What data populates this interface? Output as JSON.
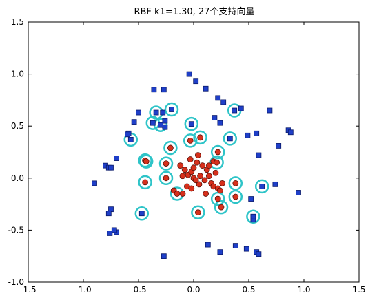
{
  "chart_data": {
    "type": "scatter",
    "title": "RBF k1=1.30, 27个支持向量",
    "xlabel": "",
    "ylabel": "",
    "xlim": [
      -1.5,
      1.5
    ],
    "ylim": [
      -1.0,
      1.5
    ],
    "x_ticks": [
      -1.5,
      -1.0,
      -0.5,
      0.0,
      0.5,
      1.0,
      1.5
    ],
    "x_tick_labels": [
      "-1.5",
      "-1.0",
      "-0.5",
      "0.0",
      "0.5",
      "1.0",
      "1.5"
    ],
    "y_ticks": [
      -1.0,
      -0.5,
      0.0,
      0.5,
      1.0,
      1.5
    ],
    "y_tick_labels": [
      "-1.0",
      "-0.5",
      "0.0",
      "0.5",
      "1.0",
      "1.5"
    ],
    "grid": false,
    "colors": {
      "class_pos": "#1f3fc8",
      "class_neg": "#d6301c",
      "support_ring": "#2ec4c8",
      "axes": "#000000"
    },
    "series": [
      {
        "marker": "square",
        "points": [
          [
            -0.9,
            -0.05
          ],
          [
            -0.8,
            0.12
          ],
          [
            -0.77,
            0.1
          ],
          [
            -0.75,
            0.1
          ],
          [
            -0.7,
            0.19
          ],
          [
            -0.59,
            0.43
          ],
          [
            -0.6,
            0.42
          ],
          [
            -0.5,
            0.63
          ],
          [
            -0.54,
            0.54
          ],
          [
            -0.36,
            0.85
          ],
          [
            -0.27,
            0.85
          ],
          [
            -0.26,
            0.49
          ],
          [
            -0.28,
            0.63
          ],
          [
            -0.26,
            0.55
          ],
          [
            -0.27,
            -0.75
          ],
          [
            -0.75,
            -0.3
          ],
          [
            -0.77,
            -0.34
          ],
          [
            -0.7,
            -0.52
          ],
          [
            -0.76,
            -0.53
          ],
          [
            -0.72,
            -0.5
          ],
          [
            -0.04,
            1.0
          ],
          [
            0.02,
            0.93
          ],
          [
            0.11,
            0.86
          ],
          [
            0.22,
            0.77
          ],
          [
            0.27,
            0.73
          ],
          [
            0.19,
            0.58
          ],
          [
            0.24,
            0.53
          ],
          [
            0.43,
            0.67
          ],
          [
            0.49,
            0.41
          ],
          [
            0.57,
            0.43
          ],
          [
            0.69,
            0.65
          ],
          [
            0.77,
            0.31
          ],
          [
            0.86,
            0.46
          ],
          [
            0.88,
            0.44
          ],
          [
            0.59,
            0.22
          ],
          [
            0.74,
            -0.06
          ],
          [
            0.95,
            -0.14
          ],
          [
            0.52,
            -0.2
          ],
          [
            0.54,
            -0.4
          ],
          [
            0.13,
            -0.64
          ],
          [
            0.24,
            -0.71
          ],
          [
            0.38,
            -0.65
          ],
          [
            0.48,
            -0.68
          ],
          [
            0.57,
            -0.71
          ],
          [
            0.59,
            -0.73
          ]
        ]
      },
      {
        "marker": "circle",
        "points": [
          [
            -0.1,
            0.02
          ],
          [
            -0.08,
            0.08
          ],
          [
            -0.05,
            0.03
          ],
          [
            -0.02,
            0.06
          ],
          [
            0.0,
            0.1
          ],
          [
            0.03,
            0.15
          ],
          [
            0.06,
            0.02
          ],
          [
            0.1,
            -0.02
          ],
          [
            0.12,
            0.08
          ],
          [
            0.14,
            0.02
          ],
          [
            0.16,
            -0.05
          ],
          [
            0.18,
            -0.08
          ],
          [
            0.2,
            0.05
          ],
          [
            0.22,
            -0.1
          ],
          [
            0.24,
            -0.12
          ],
          [
            -0.03,
            0.18
          ],
          [
            0.04,
            0.22
          ],
          [
            0.08,
            0.12
          ],
          [
            -0.06,
            -0.08
          ],
          [
            -0.02,
            -0.1
          ],
          [
            0.05,
            -0.06
          ],
          [
            0.11,
            -0.15
          ],
          [
            0.26,
            -0.05
          ],
          [
            -0.12,
            0.12
          ],
          [
            -0.1,
            -0.15
          ],
          [
            -0.18,
            -0.12
          ],
          [
            0.0,
            0.0
          ],
          [
            0.02,
            -0.02
          ],
          [
            0.14,
            0.12
          ],
          [
            0.18,
            0.16
          ]
        ]
      }
    ],
    "support_vectors": [
      [
        -0.57,
        0.37
      ],
      [
        -0.34,
        0.63
      ],
      [
        -0.3,
        0.51
      ],
      [
        -0.2,
        0.66
      ],
      [
        -0.37,
        0.53
      ],
      [
        -0.02,
        0.52
      ],
      [
        0.37,
        0.65
      ],
      [
        0.33,
        0.38
      ],
      [
        -0.44,
        0.17
      ],
      [
        -0.43,
        0.16
      ],
      [
        -0.25,
        0.14
      ],
      [
        -0.44,
        -0.04
      ],
      [
        -0.25,
        0.0
      ],
      [
        0.62,
        -0.08
      ],
      [
        0.38,
        -0.05
      ],
      [
        -0.15,
        -0.15
      ],
      [
        0.38,
        -0.18
      ],
      [
        0.22,
        -0.2
      ],
      [
        0.25,
        -0.28
      ],
      [
        -0.47,
        -0.34
      ],
      [
        0.04,
        -0.33
      ],
      [
        0.54,
        -0.37
      ],
      [
        0.21,
        0.15
      ],
      [
        0.22,
        0.25
      ],
      [
        -0.21,
        0.29
      ],
      [
        -0.03,
        0.36
      ],
      [
        0.06,
        0.39
      ]
    ],
    "support_vector_class": [
      0,
      0,
      0,
      0,
      0,
      0,
      0,
      0,
      1,
      1,
      1,
      1,
      1,
      0,
      1,
      1,
      1,
      1,
      1,
      0,
      1,
      0,
      1,
      1,
      1,
      1,
      1
    ]
  }
}
